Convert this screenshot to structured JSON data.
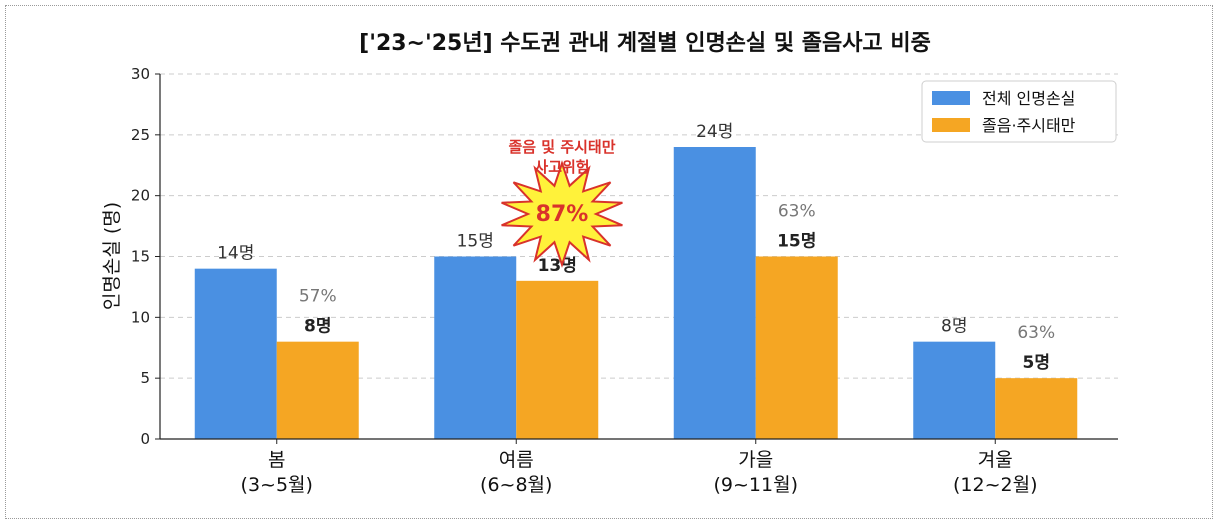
{
  "chart_data": {
    "type": "bar",
    "title": "['23~'25년] 수도권 관내 계절별 인명손실 및 졸음사고 비중",
    "ylabel": "인명손실 (명)",
    "xlabel": "",
    "ylim": [
      0,
      30
    ],
    "yticks": [
      0,
      5,
      10,
      15,
      20,
      25,
      30
    ],
    "grid": "horizontal dashed",
    "legend_position": "top-right",
    "categories": [
      {
        "line1": "봄",
        "line2": "(3~5월)"
      },
      {
        "line1": "여름",
        "line2": "(6~8월)"
      },
      {
        "line1": "가을",
        "line2": "(9~11월)"
      },
      {
        "line1": "겨울",
        "line2": "(12~2월)"
      }
    ],
    "series": [
      {
        "name": "전체 인명손실",
        "color": "#4a90e2",
        "values": [
          14,
          15,
          24,
          8
        ],
        "labels": [
          "14명",
          "15명",
          "24명",
          "8명"
        ]
      },
      {
        "name": "졸음·주시태만",
        "color": "#f5a623",
        "values": [
          8,
          13,
          15,
          5
        ],
        "labels": [
          "8명",
          "13명",
          "15명",
          "5명"
        ]
      }
    ],
    "percent_labels": [
      "57%",
      "",
      "63%",
      "63%"
    ],
    "annotation": {
      "line1": "졸음 및 주시태만",
      "line2": "사고위험",
      "burst_value": "87%",
      "burst_fill": "#fff23a",
      "burst_stroke": "#d9322b"
    }
  }
}
